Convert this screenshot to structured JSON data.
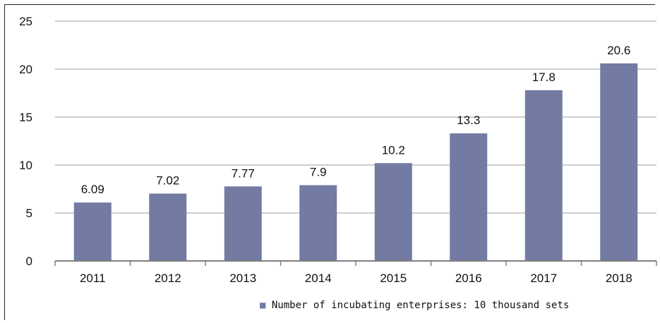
{
  "chart_data": {
    "type": "bar",
    "categories": [
      "2011",
      "2012",
      "2013",
      "2014",
      "2015",
      "2016",
      "2017",
      "2018"
    ],
    "series": [
      {
        "name": "Number of incubating enterprises: 10 thousand sets",
        "values": [
          6.09,
          7.02,
          7.77,
          7.9,
          10.2,
          13.3,
          17.8,
          20.6
        ],
        "data_labels": [
          "6.09",
          "7.02",
          "7.77",
          "7.9",
          "10.2",
          "13.3",
          "17.8",
          "20.6"
        ]
      }
    ],
    "ylim": [
      0,
      25
    ],
    "yticks": [
      0,
      5,
      10,
      15,
      20,
      25
    ],
    "ytick_labels": [
      "0",
      "5",
      "10",
      "15",
      "20",
      "25"
    ],
    "grid": true,
    "legend_position": "bottom-right",
    "bar_color": "#737ba3",
    "grid_color": "#bfbfbf",
    "axis_color": "#7f7f7f",
    "legend_marker": "■"
  }
}
